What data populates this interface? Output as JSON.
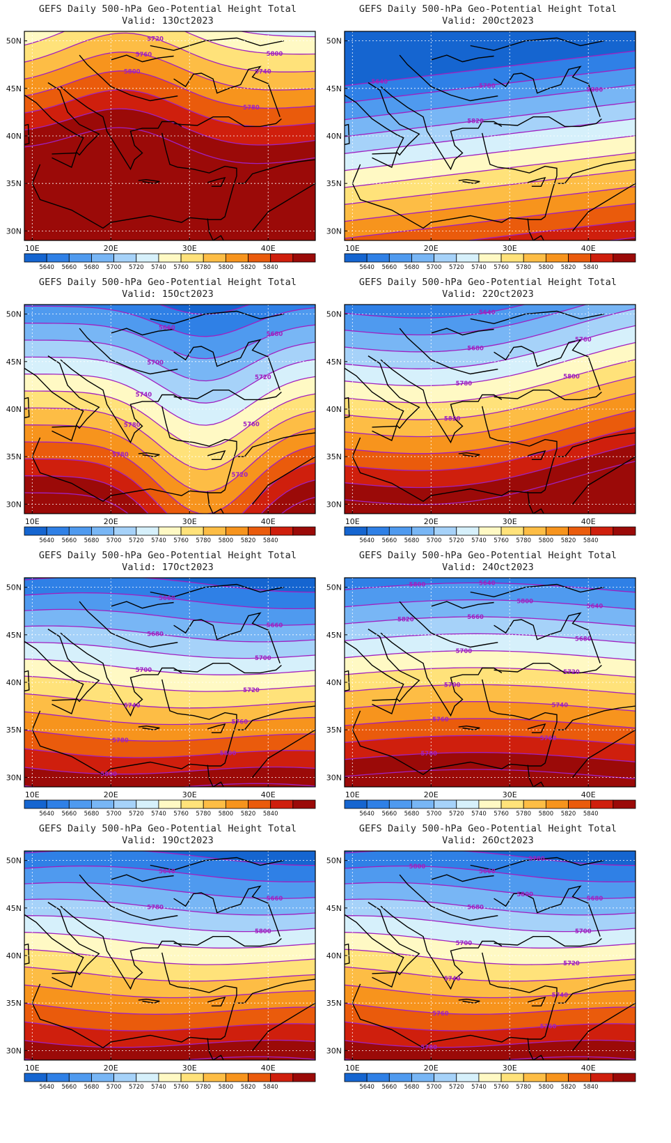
{
  "panels": [
    {
      "title": "GEFS Daily 500-hPa Geo-Potential Height Total",
      "valid": "Valid: 13Oct2023",
      "pattern": "ridge",
      "contour_labels": [
        "5760",
        "5780",
        "5800",
        "5720",
        "5740",
        "5760",
        "5780",
        "5800"
      ]
    },
    {
      "title": "GEFS Daily 500-hPa Geo-Potential Height Total",
      "valid": "Valid: 20Oct2023",
      "pattern": "zonal_cold",
      "contour_labels": [
        "5640",
        "5780",
        "5800",
        "5820"
      ]
    },
    {
      "title": "GEFS Daily 500-hPa Geo-Potential Height Total",
      "valid": "Valid: 15Oct2023",
      "pattern": "trough",
      "contour_labels": [
        "5640",
        "5660",
        "5680",
        "5700",
        "5720",
        "5740",
        "5760",
        "5780",
        "5720",
        "5780"
      ]
    },
    {
      "title": "GEFS Daily 500-hPa Geo-Potential Height Total",
      "valid": "Valid: 22Oct2023",
      "pattern": "zonal_warm",
      "contour_labels": [
        "5640",
        "5640",
        "5660",
        "5680",
        "5760",
        "5780",
        "5800",
        "5820"
      ]
    },
    {
      "title": "GEFS Daily 500-hPa Geo-Potential Height Total",
      "valid": "Valid: 17Oct2023",
      "pattern": "zonal",
      "contour_labels": [
        "5640",
        "5660",
        "5660",
        "5680",
        "5700",
        "5700",
        "5720",
        "5740",
        "5760",
        "5780",
        "5800",
        "5800"
      ]
    },
    {
      "title": "GEFS Daily 500-hPa Geo-Potential Height Total",
      "valid": "Valid: 24Oct2023",
      "pattern": "zonal_warm2",
      "contour_labels": [
        "5640",
        "5640",
        "5640",
        "5660",
        "5680",
        "5700",
        "5720",
        "5700",
        "5740",
        "5760",
        "5760",
        "5780",
        "5780",
        "5800",
        "5800",
        "5820"
      ]
    },
    {
      "title": "GEFS Daily 500-hPa Geo-Potential Height Total",
      "valid": "Valid: 19Oct2023",
      "pattern": "zonal",
      "contour_labels": [
        "5640",
        "5640",
        "5660",
        "5780",
        "5800"
      ]
    },
    {
      "title": "GEFS Daily 500-hPa Geo-Potential Height Total",
      "valid": "Valid: 26Oct2023",
      "pattern": "zonal",
      "contour_labels": [
        "5640",
        "5660",
        "5680",
        "5680",
        "5700",
        "5700",
        "5720",
        "5740",
        "5740",
        "5760",
        "5760",
        "5780",
        "5780",
        "5800",
        "5800"
      ]
    }
  ],
  "lat_labels": [
    "50N",
    "45N",
    "40N",
    "35N",
    "30N"
  ],
  "lon_labels": [
    "10E",
    "20E",
    "30E",
    "40E"
  ],
  "colorbar": {
    "labels": [
      "5640",
      "5660",
      "5680",
      "5700",
      "5720",
      "5740",
      "5760",
      "5780",
      "5800",
      "5820",
      "5840"
    ],
    "colors": [
      "#1565d0",
      "#2f80e6",
      "#4f9aef",
      "#78b6f5",
      "#a6d2f9",
      "#d6f0fb",
      "#fff9c4",
      "#ffe27a",
      "#fdbd45",
      "#f7941d",
      "#ea5b0c",
      "#cf1f0d",
      "#9b0a08"
    ]
  },
  "contour_color": "#a020c0"
}
